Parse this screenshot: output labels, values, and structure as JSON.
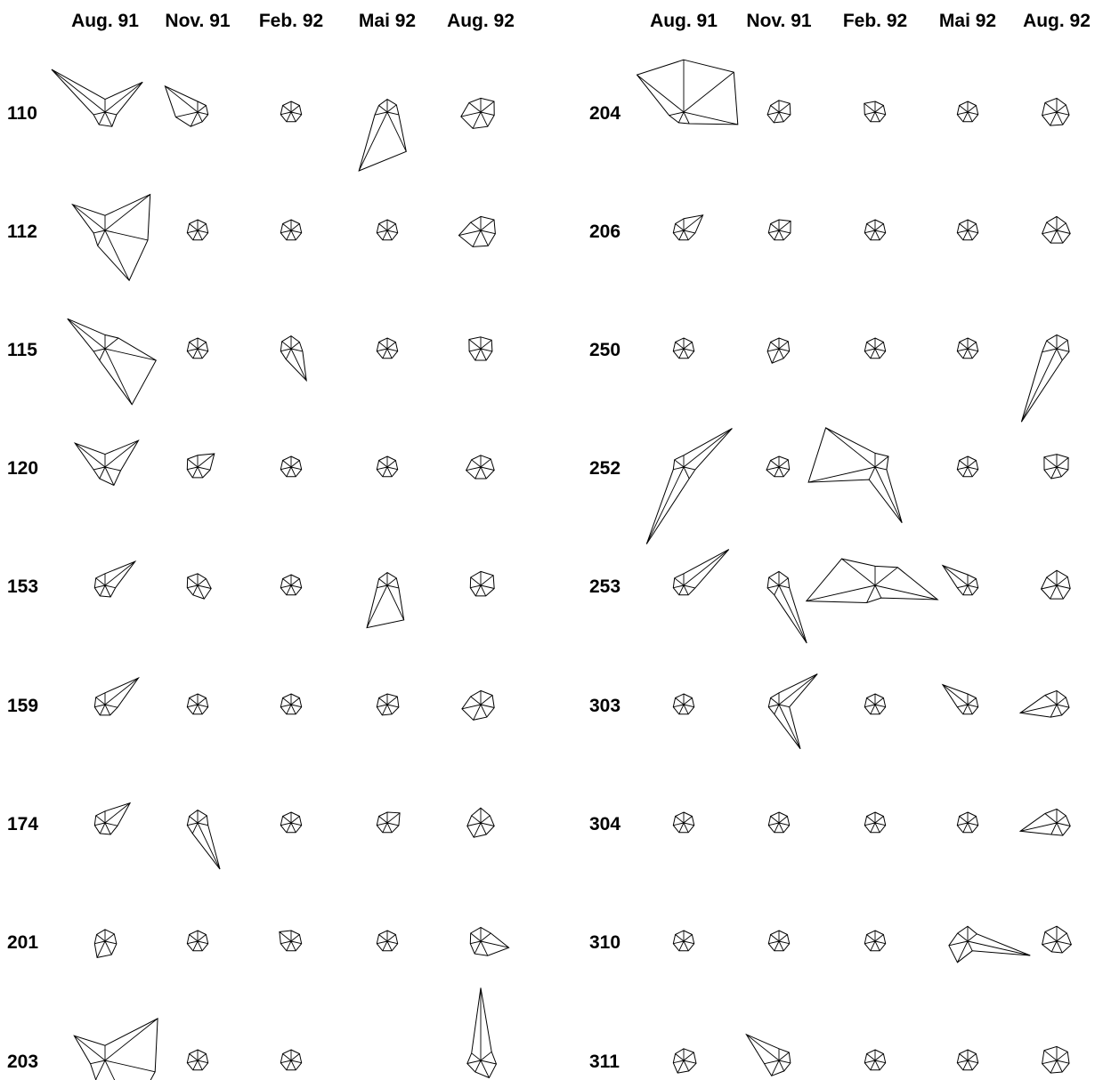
{
  "chart_data": {
    "type": "star",
    "column_labels": [
      "Aug. 91",
      "Nov. 91",
      "Feb. 92",
      "Mai 92",
      "Aug. 92"
    ],
    "variables_per_star": 7,
    "baseline_value": 1,
    "panels": [
      {
        "rows": [
          {
            "id": "110",
            "stars": [
              [
                1.2,
                4.5,
                1.1,
                1.5,
                1.3,
                1.1,
                6.4
              ],
              [
                1.0,
                1.0,
                1.0,
                1.0,
                1.5,
                2.1,
                3.9
              ],
              [
                1,
                1,
                1,
                1,
                1,
                1,
                1
              ],
              [
                1.2,
                1.1,
                1.1,
                4.1,
                6.1,
                1.2,
                1.0
              ],
              [
                1.3,
                1.6,
                1.3,
                1.5,
                1.7,
                1.9,
                1.4
              ]
            ]
          },
          {
            "id": "112",
            "stars": [
              [
                1.4,
                5.4,
                4.1,
                5.2,
                1.6,
                1.1,
                3.9
              ],
              [
                1,
                1,
                1,
                1,
                1,
                1,
                1
              ],
              [
                1,
                1,
                1,
                1,
                1,
                1,
                1
              ],
              [
                1,
                1,
                1,
                1,
                1,
                1,
                1
              ],
              [
                1.3,
                1.6,
                1.4,
                1.6,
                1.7,
                2.1,
                1.2
              ]
            ]
          },
          {
            "id": "115",
            "stars": [
              [
                1.3,
                1.6,
                4.9,
                5.8,
                1.2,
                1.1,
                4.5
              ],
              [
                1,
                1,
                1,
                1,
                1,
                1,
                1
              ],
              [
                1.2,
                1.0,
                1.1,
                3.3,
                1.1,
                1.0,
                1.1
              ],
              [
                1,
                1,
                1,
                1,
                1,
                1,
                1
              ],
              [
                1.1,
                1.3,
                1.1,
                1.2,
                1.2,
                1.1,
                1.4
              ]
            ]
          },
          {
            "id": "120",
            "stars": [
              [
                1.2,
                4.0,
                1.5,
                1.9,
                1.2,
                1.1,
                3.6
              ],
              [
                1.1,
                2.0,
                1.2,
                1.1,
                1.1,
                1.0,
                1.2
              ],
              [
                1,
                1,
                1,
                1,
                1,
                1,
                1
              ],
              [
                1,
                1,
                1,
                1,
                1,
                1,
                1
              ],
              [
                1.1,
                1.2,
                1.3,
                1.2,
                1.2,
                1.4,
                1.1
              ]
            ]
          },
          {
            "id": "153",
            "stars": [
              [
                1.1,
                3.6,
                1.0,
                1.2,
                1.1,
                1.0,
                1.1
              ],
              [
                1.1,
                1.0,
                1.3,
                1.4,
                1.0,
                1.0,
                1.2
              ],
              [
                1,
                1,
                1,
                1,
                1,
                1,
                1
              ],
              [
                1.2,
                1.1,
                1.1,
                3.6,
                4.4,
                1.0,
                1.0
              ],
              [
                1.3,
                1.5,
                1.3,
                1.1,
                1.1,
                1.0,
                1.2
              ]
            ]
          },
          {
            "id": "159",
            "stars": [
              [
                1.1,
                4.0,
                1.2,
                1.1,
                1.1,
                1.0,
                1.1
              ],
              [
                1,
                1,
                1,
                1,
                1,
                1,
                1
              ],
              [
                1,
                1,
                1,
                1,
                1,
                1,
                1
              ],
              [
                1.0,
                1.2,
                1.1,
                1.0,
                1.1,
                1.0,
                1.0
              ],
              [
                1.3,
                1.4,
                1.3,
                1.3,
                1.6,
                1.8,
                1.2
              ]
            ]
          },
          {
            "id": "174",
            "stars": [
              [
                1.1,
                3.0,
                1.2,
                1.2,
                1.1,
                1.0,
                1.1
              ],
              [
                1.2,
                1.1,
                1.0,
                4.8,
                1.1,
                1.0,
                1.0
              ],
              [
                1,
                1,
                1,
                1,
                1,
                1,
                1
              ],
              [
                1.0,
                1.5,
                1.1,
                1.0,
                1.0,
                1.0,
                1.0
              ],
              [
                1.4,
                1.1,
                1.3,
                1.2,
                1.5,
                1.3,
                1.1
              ]
            ]
          },
          {
            "id": "201",
            "stars": [
              [
                1.1,
                1.1,
                1.1,
                1.4,
                1.7,
                1.0,
                1.0
              ],
              [
                1,
                1,
                1,
                1,
                1,
                1,
                1
              ],
              [
                1.0,
                1.0,
                1.0,
                1.0,
                1.0,
                1.0,
                1.4
              ],
              [
                1,
                1,
                1,
                1,
                1,
                1,
                1
              ],
              [
                1.3,
                1.2,
                2.7,
                1.5,
                1.3,
                1.0,
                1.2
              ]
            ]
          },
          {
            "id": "203",
            "stars": [
              [
                1.4,
                6.3,
                4.8,
                5.7,
                2.0,
                1.4,
                3.7
              ],
              [
                1,
                1,
                1,
                1,
                1,
                1,
                1
              ],
              [
                1,
                1,
                1,
                1,
                1,
                1,
                1
              ],
              [],
              [
                6.8,
                1.3,
                1.5,
                1.8,
                1.2,
                1.3,
                1.1
              ]
            ]
          }
        ]
      },
      {
        "rows": [
          {
            "id": "204",
            "stars": [
              [
                4.9,
                6.0,
                5.2,
                1.2,
                1.1,
                1.4,
                5.6
              ],
              [
                1.1,
                1.3,
                1.1,
                1.0,
                1.1,
                1.1,
                1.0
              ],
              [
                1.0,
                1.0,
                1.0,
                1.0,
                1.0,
                1.0,
                1.3
              ],
              [
                1,
                1,
                1,
                1,
                1,
                1,
                1
              ],
              [
                1.3,
                1.1,
                1.2,
                1.3,
                1.4,
                1.4,
                1.4
              ]
            ]
          },
          {
            "id": "206",
            "stars": [
              [
                1.1,
                2.3,
                1.1,
                1.0,
                1.0,
                1.0,
                1.0
              ],
              [
                1.0,
                1.4,
                1.1,
                1.0,
                1.0,
                1.0,
                1.0
              ],
              [
                1,
                1,
                1,
                1,
                1,
                1,
                1
              ],
              [
                1,
                1,
                1,
                1,
                1,
                1,
                1
              ],
              [
                1.3,
                1.1,
                1.3,
                1.3,
                1.3,
                1.4,
                1.2
              ]
            ]
          },
          {
            "id": "250",
            "stars": [
              [
                1,
                1,
                1,
                1,
                1,
                1,
                1
              ],
              [
                1.0,
                1.1,
                1.0,
                1.0,
                1.5,
                1.1,
                1.0
              ],
              [
                1,
                1,
                1,
                1,
                1,
                1,
                1
              ],
              [
                1,
                1,
                1,
                1,
                1,
                1,
                1
              ],
              [
                1.3,
                1.3,
                1.2,
                1.2,
                7.6,
                1.4,
                1.2
              ]
            ]
          },
          {
            "id": "252",
            "stars": [
              [
                1.1,
                5.8,
                1.1,
                1.2,
                8.0,
                1.0,
                1.1
              ],
              [
                1.0,
                1.1,
                1.0,
                1.0,
                1.0,
                1.2,
                1.0
              ],
              [
                1.3,
                1.6,
                1.1,
                5.8,
                1.3,
                6.4,
                5.9
              ],
              [
                1,
                1,
                1,
                1,
                1,
                1,
                1
              ],
              [
                1.2,
                1.4,
                1.1,
                1.0,
                1.2,
                1.2,
                1.5
              ]
            ]
          },
          {
            "id": "253",
            "stars": [
              [
                1.1,
                5.4,
                1.1,
                1.0,
                1.0,
                1.0,
                1.1
              ],
              [
                1.3,
                1.1,
                1.0,
                6.0,
                1.0,
                1.1,
                1.2
              ],
              [
                1.8,
                2.7,
                6.0,
                1.3,
                1.8,
                6.6,
                4.0
              ],
              [
                1.0,
                1.0,
                1.0,
                1.0,
                1.0,
                1.0,
                3.0
              ],
              [
                1.4,
                1.3,
                1.3,
                1.4,
                1.4,
                1.5,
                1.2
              ]
            ]
          },
          {
            "id": "303",
            "stars": [
              [
                1,
                1,
                1,
                1,
                1,
                1,
                1
              ],
              [
                1.1,
                4.6,
                1.0,
                4.6,
                1.0,
                1.0,
                1.0
              ],
              [
                1,
                1,
                1,
                1,
                1,
                1,
                1
              ],
              [
                1.0,
                1.0,
                1.0,
                1.0,
                1.0,
                1.0,
                3.0
              ],
              [
                1.3,
                1.1,
                1.2,
                1.1,
                1.3,
                3.5,
                1.4
              ]
            ]
          },
          {
            "id": "304",
            "stars": [
              [
                1,
                1,
                1,
                1,
                1,
                1,
                1
              ],
              [
                1,
                1,
                1,
                1,
                1,
                1,
                1
              ],
              [
                1,
                1,
                1,
                1,
                1,
                1,
                1
              ],
              [
                1,
                1,
                1,
                1,
                1,
                1,
                1
              ],
              [
                1.3,
                1.1,
                1.3,
                1.3,
                1.2,
                3.5,
                1.4
              ]
            ]
          },
          {
            "id": "310",
            "stars": [
              [
                1,
                1,
                1,
                1,
                1,
                1,
                1
              ],
              [
                1,
                1,
                1,
                1,
                1,
                1,
                1
              ],
              [
                1,
                1,
                1,
                1,
                1,
                1,
                1
              ],
              [
                1.4,
                1.1,
                6.0,
                1.0,
                2.2,
                1.8,
                1.2
              ],
              [
                1.4,
                1.2,
                1.4,
                1.2,
                1.1,
                1.4,
                1.4
              ]
            ]
          },
          {
            "id": "311",
            "stars": [
              [
                1.1,
                1.2,
                1.2,
                1.1,
                1.3,
                1.0,
                1.0
              ],
              [
                1.1,
                1.2,
                1.1,
                1.1,
                1.6,
                1.4,
                3.9
              ],
              [
                1,
                1,
                1,
                1,
                1,
                1,
                1
              ],
              [
                1,
                1,
                1,
                1,
                1,
                1,
                1
              ],
              [
                1.3,
                1.3,
                1.2,
                1.2,
                1.3,
                1.4,
                1.5
              ]
            ]
          }
        ]
      }
    ]
  }
}
